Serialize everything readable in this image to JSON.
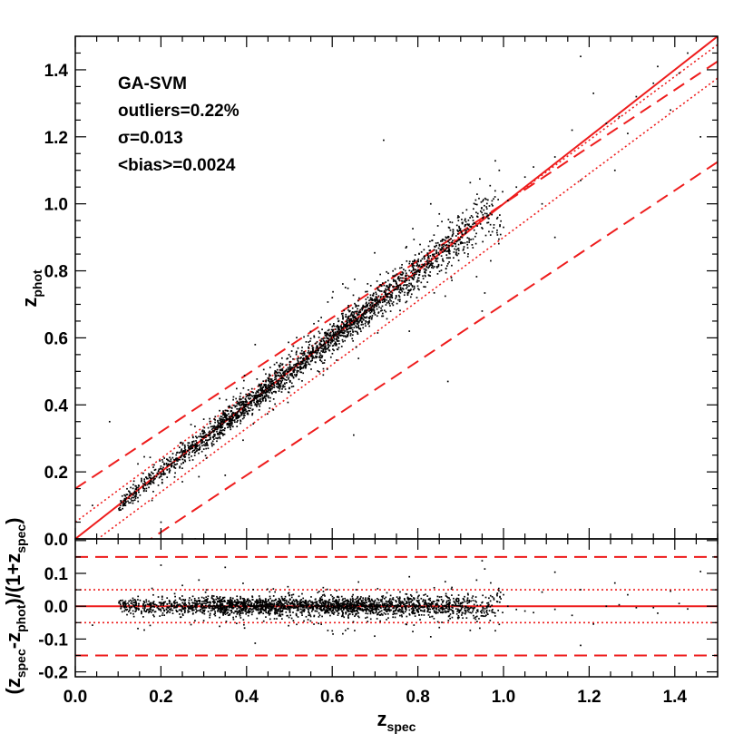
{
  "chart_data": [
    {
      "name": "main",
      "type": "scatter",
      "xlabel": "z",
      "xlabel_sub": "spec",
      "ylabel": "z",
      "ylabel_sub": "phot",
      "xlim": [
        0.0,
        1.5
      ],
      "ylim": [
        0.0,
        1.5
      ],
      "xticks": [
        0.0,
        0.2,
        0.4,
        0.6,
        0.8,
        1.0,
        1.2,
        1.4
      ],
      "xtick_labels": [
        "0.0",
        "0.2",
        "0.4",
        "0.6",
        "0.8",
        "1.0",
        "1.2",
        "1.4"
      ],
      "yticks": [
        0.0,
        0.2,
        0.4,
        0.6,
        0.8,
        1.0,
        1.2,
        1.4
      ],
      "ytick_labels": [
        "0.0",
        "0.2",
        "0.4",
        "0.6",
        "0.8",
        "1.0",
        "1.2",
        "1.4"
      ],
      "annotations": [
        "GA-SVM",
        "outliers=0.22%",
        "σ=0.013",
        "<bias>=0.0024"
      ],
      "reference_lines": [
        {
          "name": "identity",
          "style": "solid",
          "slope": 1.0,
          "intercept": 0.0
        },
        {
          "name": "upper-1sigma-bound",
          "style": "dotted",
          "slope": 0.95,
          "intercept": 0.05
        },
        {
          "name": "lower-1sigma-bound",
          "style": "dotted",
          "slope": 0.95,
          "intercept": -0.05
        },
        {
          "name": "upper-outlier-bound",
          "style": "dashed",
          "slope": 0.85,
          "intercept": 0.15
        },
        {
          "name": "lower-outlier-bound",
          "style": "dashed",
          "slope": 0.85,
          "intercept": -0.15
        }
      ],
      "point_clusters": [
        {
          "x": [
            0.1,
            0.16
          ],
          "n": 90,
          "sd": 0.012
        },
        {
          "x": [
            0.16,
            0.24
          ],
          "n": 140,
          "sd": 0.013
        },
        {
          "x": [
            0.24,
            0.33
          ],
          "n": 220,
          "sd": 0.013
        },
        {
          "x": [
            0.33,
            0.45
          ],
          "n": 480,
          "sd": 0.013
        },
        {
          "x": [
            0.45,
            0.6
          ],
          "n": 520,
          "sd": 0.013
        },
        {
          "x": [
            0.6,
            0.7
          ],
          "n": 420,
          "sd": 0.014
        },
        {
          "x": [
            0.7,
            0.8
          ],
          "n": 300,
          "sd": 0.015
        },
        {
          "x": [
            0.8,
            0.92
          ],
          "n": 300,
          "sd": 0.016
        },
        {
          "x": [
            0.92,
            1.0
          ],
          "n": 100,
          "sd": 0.022
        }
      ],
      "scattered_points": [
        {
          "x": 0.08,
          "y": 0.35
        },
        {
          "x": 0.28,
          "y": 0.0
        },
        {
          "x": 0.65,
          "y": 0.31
        },
        {
          "x": 0.72,
          "y": 1.19
        },
        {
          "x": 0.87,
          "y": 0.47
        },
        {
          "x": 0.95,
          "y": 0.68
        },
        {
          "x": 1.05,
          "y": 1.08
        },
        {
          "x": 1.12,
          "y": 0.9
        },
        {
          "x": 1.16,
          "y": 1.22
        },
        {
          "x": 1.18,
          "y": 1.07
        },
        {
          "x": 1.26,
          "y": 1.1
        },
        {
          "x": 1.29,
          "y": 1.21
        },
        {
          "x": 1.31,
          "y": 1.32
        },
        {
          "x": 1.36,
          "y": 1.41
        },
        {
          "x": 1.39,
          "y": 1.28
        },
        {
          "x": 1.43,
          "y": 1.45
        },
        {
          "x": 1.46,
          "y": 1.2
        },
        {
          "x": 1.18,
          "y": 1.44
        },
        {
          "x": 1.27,
          "y": 1.26
        },
        {
          "x": 1.21,
          "y": 1.33
        },
        {
          "x": 0.04,
          "y": 0.1
        },
        {
          "x": 0.2,
          "y": 0.05
        },
        {
          "x": 0.5,
          "y": 0.45
        },
        {
          "x": 0.85,
          "y": 0.97
        },
        {
          "x": 1.0,
          "y": 0.93
        },
        {
          "x": 1.01,
          "y": 1.01
        },
        {
          "x": 1.03,
          "y": 1.05
        },
        {
          "x": 1.07,
          "y": 1.11
        },
        {
          "x": 0.97,
          "y": 0.83
        },
        {
          "x": 1.09,
          "y": 1.0
        },
        {
          "x": 1.35,
          "y": 1.36
        },
        {
          "x": 1.24,
          "y": 1.24
        },
        {
          "x": 0.78,
          "y": 0.62
        },
        {
          "x": 0.83,
          "y": 1.0
        },
        {
          "x": 0.99,
          "y": 1.1
        },
        {
          "x": 0.6,
          "y": 0.72
        },
        {
          "x": 0.35,
          "y": 0.19
        },
        {
          "x": 0.42,
          "y": 0.58
        },
        {
          "x": 1.12,
          "y": 1.14
        },
        {
          "x": 1.41,
          "y": 1.39
        }
      ]
    },
    {
      "name": "residual",
      "type": "scatter",
      "xlabel": "z",
      "xlabel_sub": "spec",
      "ylabel": "(z_spec-z_phot)/(1+z_spec)",
      "ylabel_parts": [
        "(z",
        "spec",
        "-z",
        "phot",
        ")/(1+z",
        "spec",
        ")"
      ],
      "xlim": [
        0.0,
        1.5
      ],
      "ylim": [
        -0.215,
        0.205
      ],
      "xticks": [
        0.0,
        0.2,
        0.4,
        0.6,
        0.8,
        1.0,
        1.2,
        1.4
      ],
      "xtick_labels": [
        "0.0",
        "0.2",
        "0.4",
        "0.6",
        "0.8",
        "1.0",
        "1.2",
        "1.4"
      ],
      "yticks": [
        0.1,
        0.0,
        -0.1,
        -0.2
      ],
      "ytick_labels": [
        "0.1",
        "0.0",
        "-0.1",
        "-0.2"
      ],
      "reference_lines": [
        {
          "name": "zero",
          "style": "solid",
          "y": 0.0
        },
        {
          "name": "upper-1sigma",
          "style": "dotted",
          "y": 0.05
        },
        {
          "name": "lower-1sigma",
          "style": "dotted",
          "y": -0.05
        },
        {
          "name": "upper-outlier",
          "style": "dashed",
          "y": 0.15
        },
        {
          "name": "lower-outlier",
          "style": "dashed",
          "y": -0.15
        }
      ],
      "point_spread": {
        "core_sd": 0.01,
        "wide_sd": 0.035
      }
    }
  ],
  "colors": {
    "reference_line": "#ee1c1c",
    "points": "#000000",
    "axes": "#000000"
  }
}
